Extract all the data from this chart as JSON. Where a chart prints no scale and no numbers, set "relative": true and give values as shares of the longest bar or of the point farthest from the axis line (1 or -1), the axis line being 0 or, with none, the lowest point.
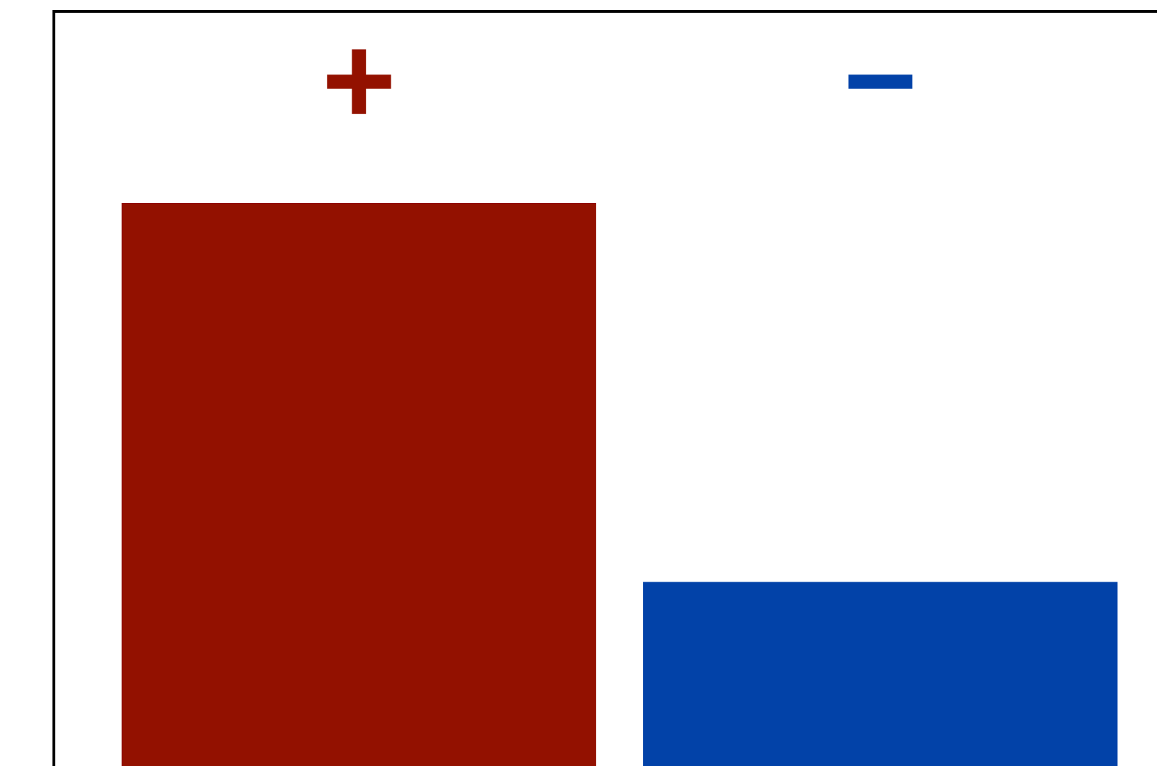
{
  "chart_data": {
    "type": "bar",
    "relative": true,
    "categories": [
      "+",
      "−"
    ],
    "values": [
      1,
      0.34
    ],
    "colors": [
      "#931100",
      "#0242a8"
    ]
  }
}
